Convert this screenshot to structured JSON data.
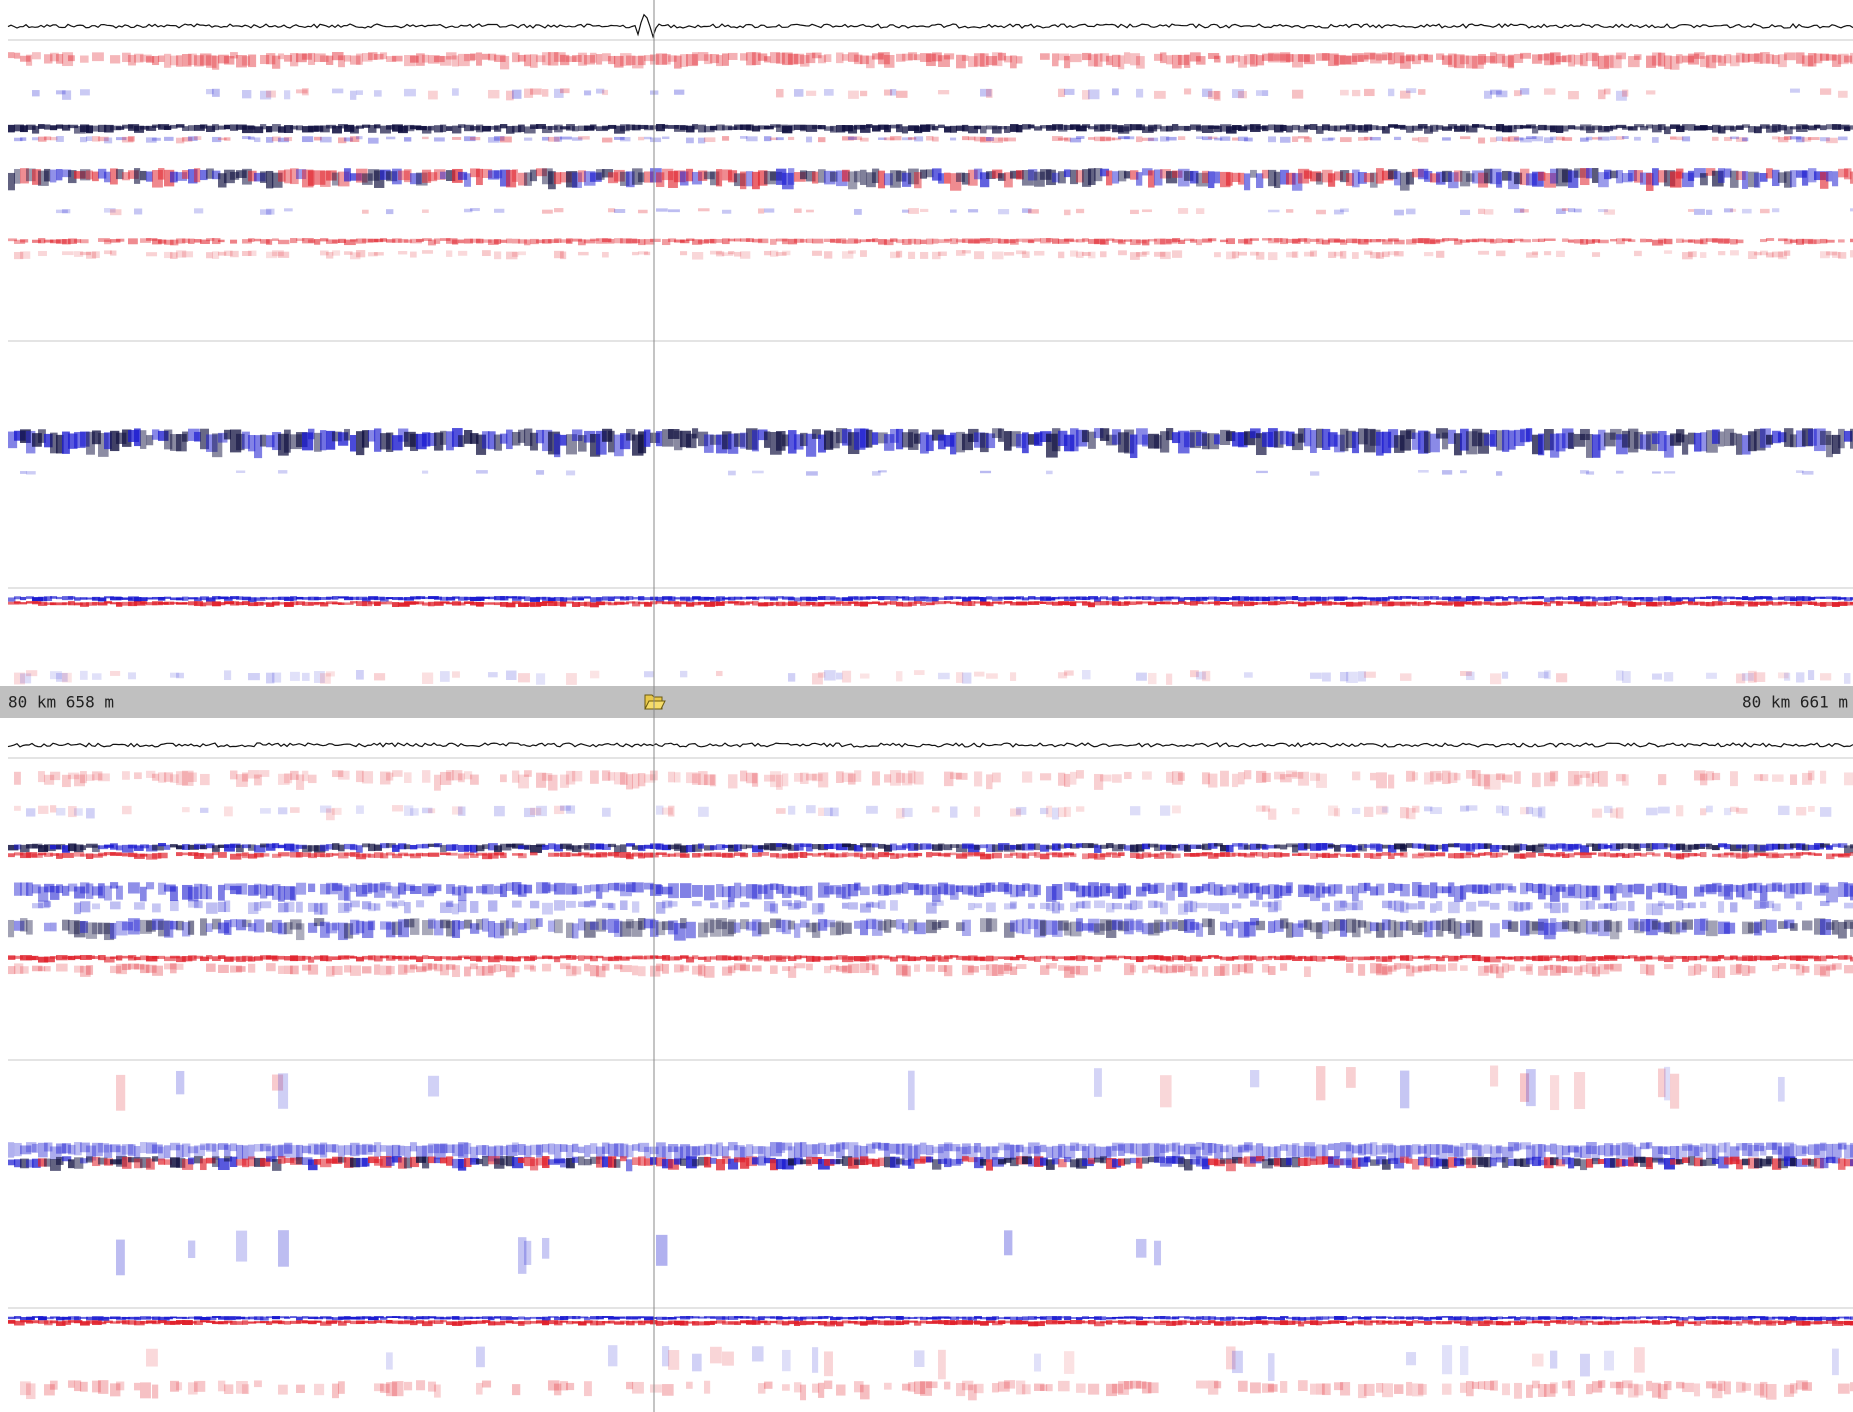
{
  "status_bar": {
    "left_position": "80 km 658 m",
    "right_position": "80 km 661 m"
  }
}
